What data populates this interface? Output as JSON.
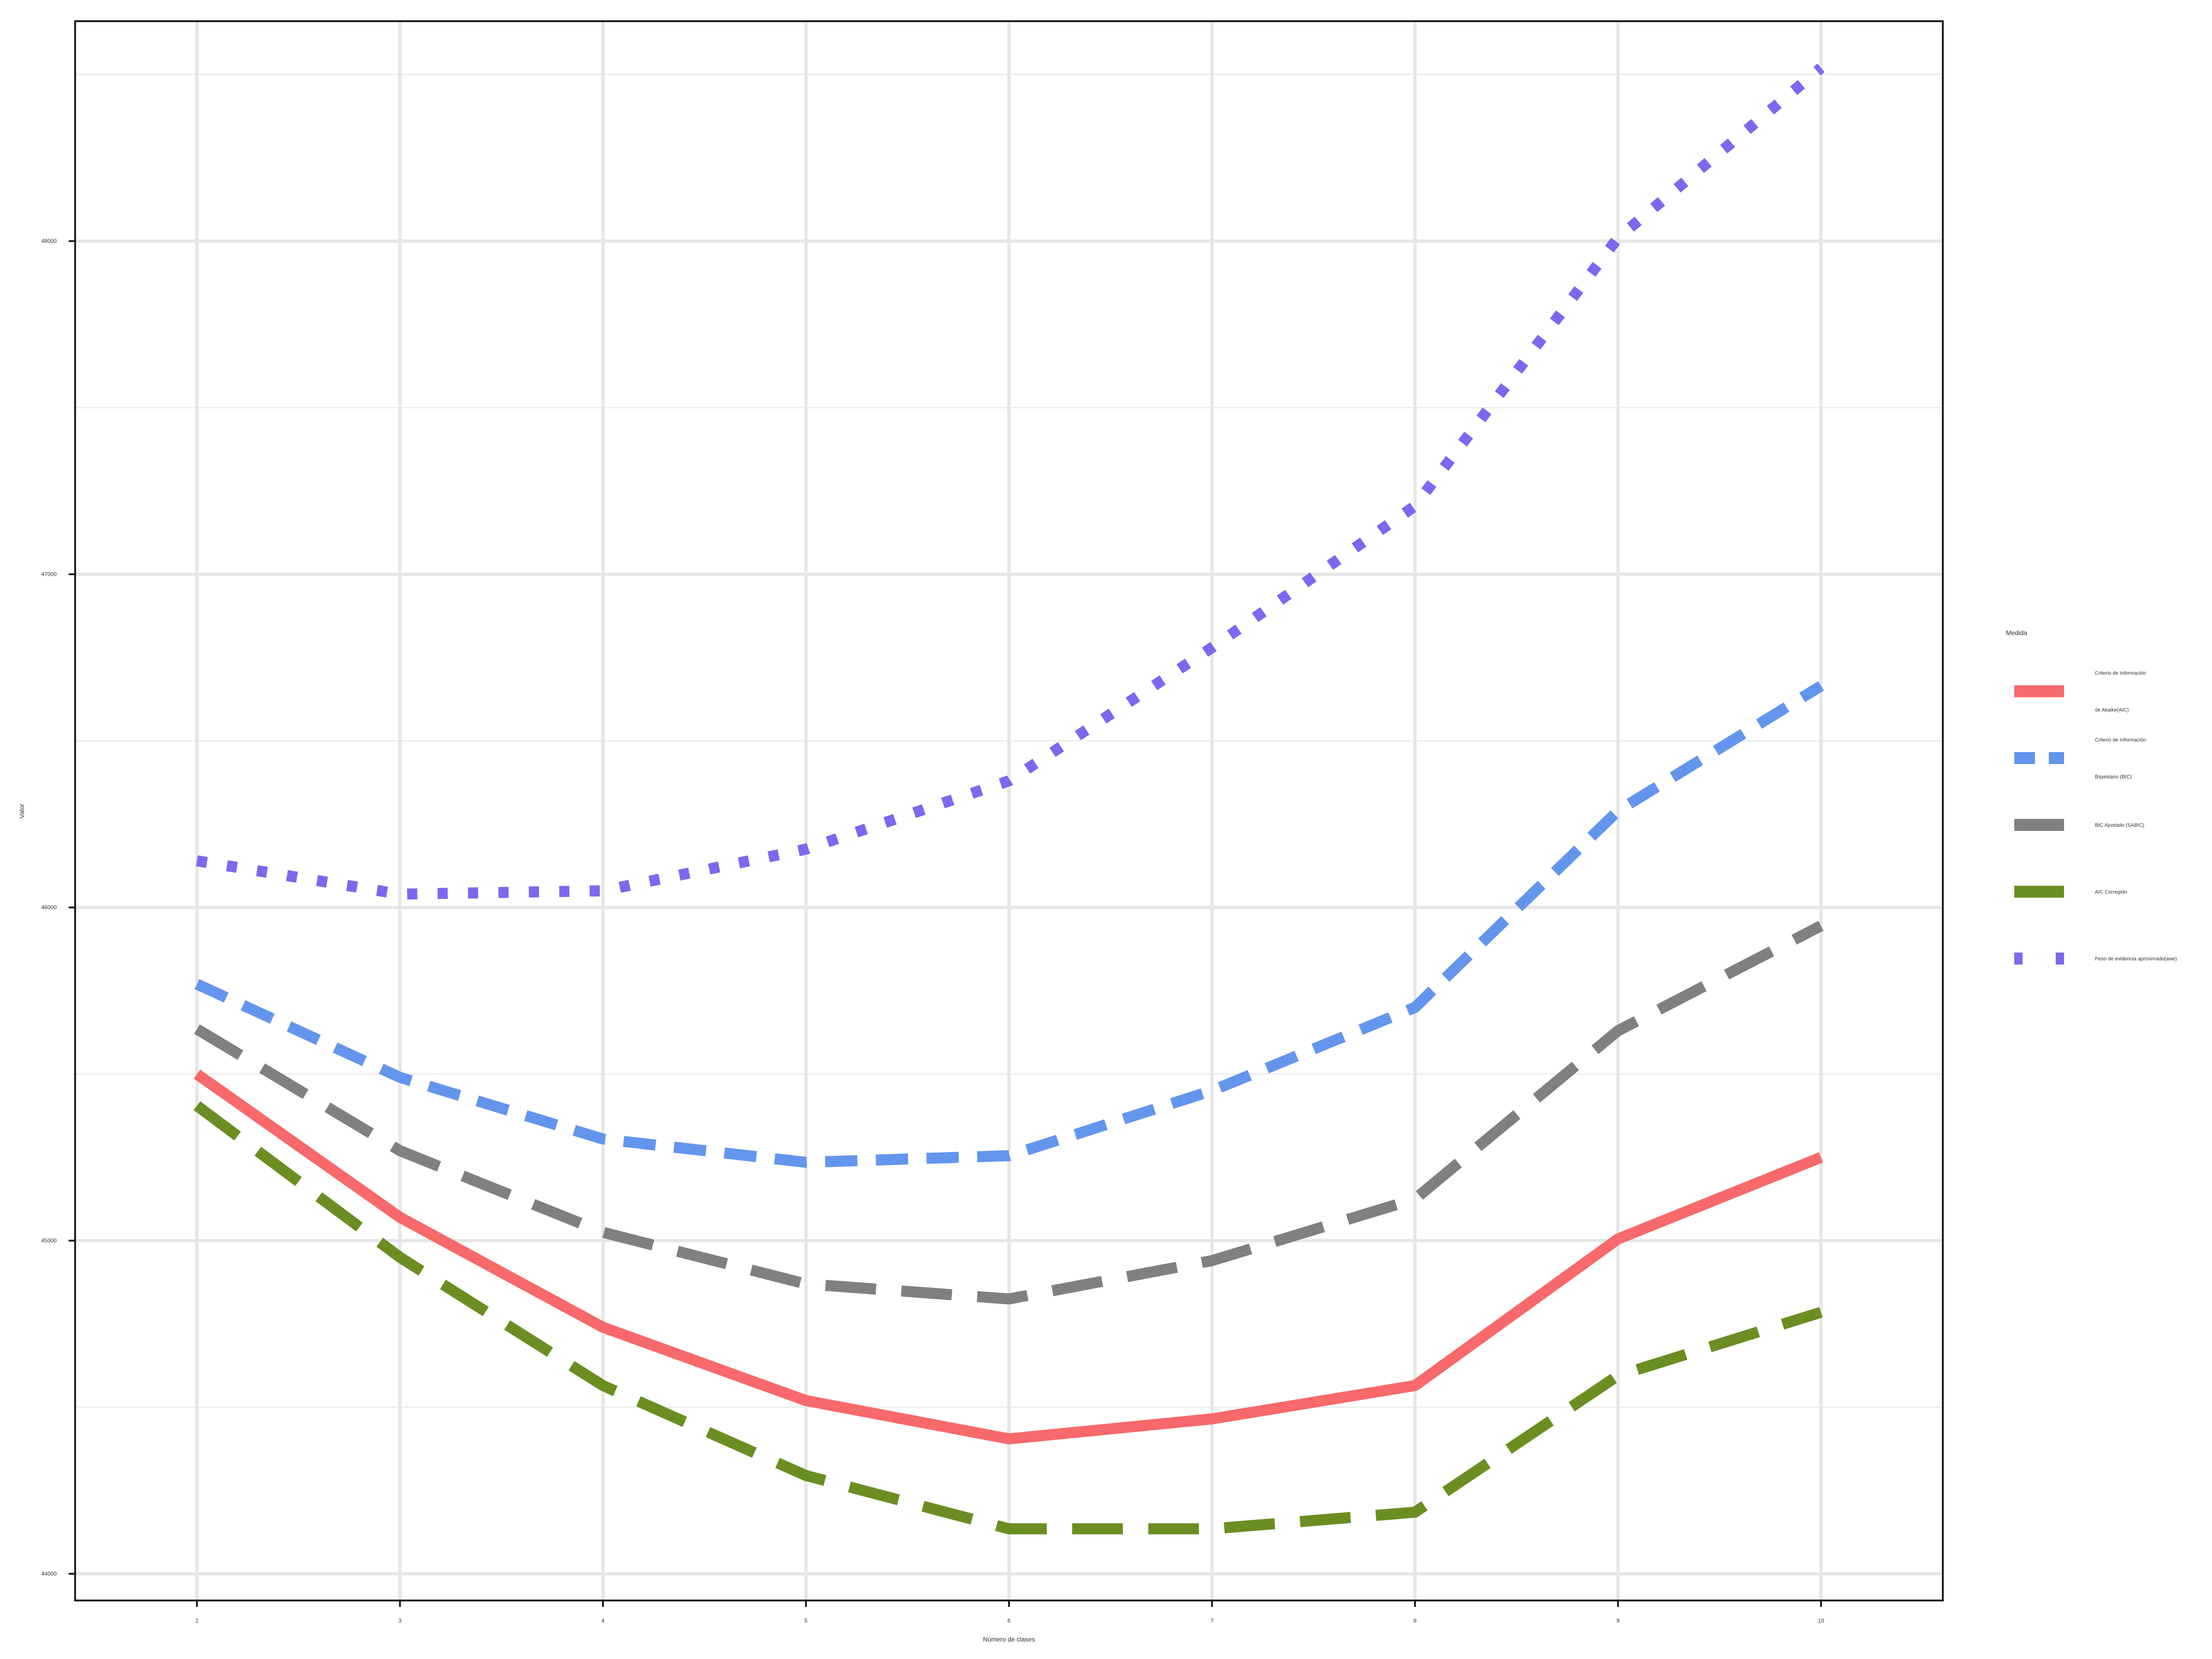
{
  "chart_data": {
    "type": "line",
    "title": "",
    "xlabel": "Número de clases",
    "ylabel": "Valor",
    "x": [
      2,
      3,
      4,
      5,
      6,
      7,
      8,
      9,
      10
    ],
    "xlim": [
      1.4,
      10.6
    ],
    "ylim": [
      43920,
      48660
    ],
    "yticks": [
      44000,
      45000,
      46000,
      47000,
      48000
    ],
    "ytick_labels": [
      "44000",
      "45000",
      "46000",
      "47000",
      "48000"
    ],
    "xtick_labels": [
      "2",
      "3",
      "4",
      "5",
      "6",
      "7",
      "8",
      "9",
      "10"
    ],
    "grid": true,
    "legend_position": "right",
    "legend_title": "Medida",
    "series": [
      {
        "name": "Criterio de Información de Akaike(AIC)",
        "legend_lines": [
          "Criterio de Información",
          "de Akaike(AIC)"
        ],
        "color": "#F8696B",
        "dash": "solid",
        "values": [
          45500,
          45070,
          44740,
          44520,
          44405,
          44465,
          44565,
          45005,
          45250
        ]
      },
      {
        "name": "Criterio de Información Bayesiano (BIC)",
        "legend_lines": [
          "Criterio de Información",
          "Bayesiano (BIC)"
        ],
        "color": "#6495ED",
        "dash": "dashed",
        "values": [
          45770,
          45490,
          45305,
          45235,
          45255,
          45450,
          45700,
          46290,
          46665
        ]
      },
      {
        "name": "BIC Ajustado (SABIC)",
        "legend_lines": [
          "BIC Ajustado (SABIC)"
        ],
        "color": "#808080",
        "dash": "longdash",
        "values": [
          45635,
          45270,
          45025,
          44870,
          44825,
          44940,
          45125,
          45630,
          45945
        ]
      },
      {
        "name": "AIC Corregido",
        "legend_lines": [
          "AIC Corregido"
        ],
        "color": "#6B8E23",
        "dash": "longdash",
        "values": [
          45405,
          44950,
          44565,
          44295,
          44135,
          44135,
          44185,
          44595,
          44785
        ]
      },
      {
        "name": "Peso de evidencia aproximado(awe)",
        "legend_lines": [
          "Peso de evidencia aproximado(awe)"
        ],
        "color": "#7B68EE",
        "dash": "dotted",
        "values": [
          46140,
          46040,
          46050,
          46175,
          46380,
          46780,
          47205,
          48010,
          48520
        ]
      }
    ]
  }
}
